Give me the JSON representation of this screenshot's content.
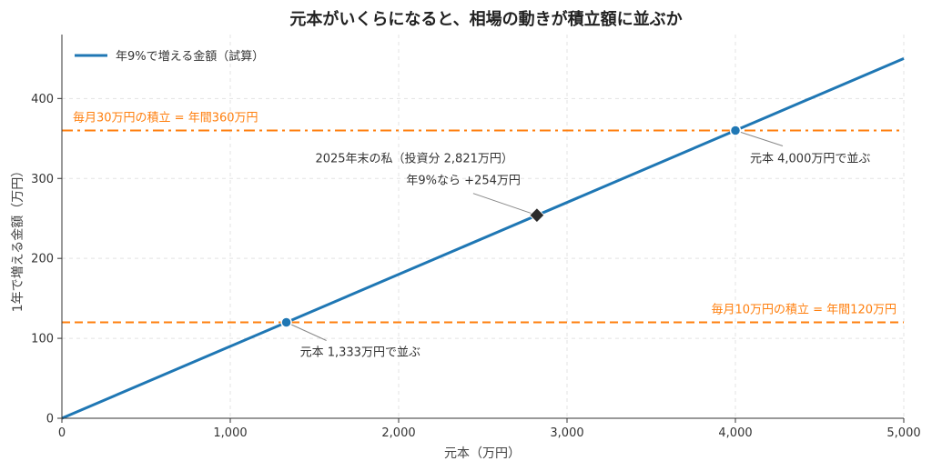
{
  "chart_data": {
    "type": "line",
    "title": "元本がいくらになると、相場の動きが積立額に並ぶか",
    "xlabel": "元本（万円）",
    "ylabel": "1年で増える金額（万円）",
    "xlim": [
      0,
      5000
    ],
    "ylim": [
      0,
      480
    ],
    "x_ticks": [
      0,
      1000,
      2000,
      3000,
      4000,
      5000
    ],
    "x_tick_labels": [
      "0",
      "1,000",
      "2,000",
      "3,000",
      "4,000",
      "5,000"
    ],
    "y_ticks": [
      0,
      100,
      200,
      300,
      400
    ],
    "y_tick_labels": [
      "0",
      "100",
      "200",
      "300",
      "400"
    ],
    "grid": true,
    "legend_position": "top-left",
    "series": [
      {
        "name": "年9%で増える金額（試算）",
        "color": "#1f77b4",
        "x": [
          0,
          5000
        ],
        "y": [
          0,
          450
        ]
      }
    ],
    "reference_lines": [
      {
        "label": "毎月30万円の積立 = 年間360万円",
        "y": 360,
        "color": "#ff7f0e",
        "style": "dashdot"
      },
      {
        "label": "毎月10万円の積立 = 年間120万円",
        "y": 120,
        "color": "#ff7f0e",
        "style": "dashed"
      }
    ],
    "points": [
      {
        "x": 1333,
        "y": 120,
        "marker": "circle",
        "label": "元本 1,333万円で並ぶ"
      },
      {
        "x": 4000,
        "y": 360,
        "marker": "circle",
        "label": "元本 4,000万円で並ぶ"
      },
      {
        "x": 2821,
        "y": 254,
        "marker": "diamond",
        "label_line1": "2025年末の私（投資分 2,821万円）",
        "label_line2": "年9%なら +254万円"
      }
    ]
  }
}
